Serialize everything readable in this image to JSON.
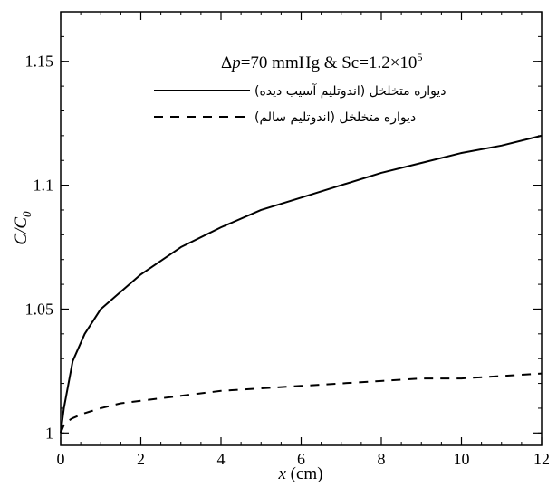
{
  "chart_data": {
    "type": "line",
    "annotation_parts": {
      "delta": "Δ",
      "p": "p",
      "rest": "=70 mmHg & Sc=1.2×10",
      "exp": "5"
    },
    "xlabel_parts": {
      "italic": "x",
      "rest": " (cm)"
    },
    "ylabel_parts": {
      "main": "C/C",
      "sub": "0"
    },
    "xlim": [
      0,
      12
    ],
    "ylim": [
      0.995,
      1.17
    ],
    "x_ticks": [
      0,
      2,
      4,
      6,
      8,
      10,
      12
    ],
    "x_tick_labels": [
      "0",
      "2",
      "4",
      "6",
      "8",
      "10",
      "12"
    ],
    "x_minor_step": 0.5,
    "y_ticks": [
      1.0,
      1.05,
      1.1,
      1.15
    ],
    "y_tick_labels": [
      "1",
      "1.05",
      "1.1",
      "1.15"
    ],
    "y_minor_step": 0.01,
    "grid": false,
    "legend_position": "top-right",
    "series": [
      {
        "name": "دیواره متخلخل (اندوتلیم آسیب دیده)",
        "style": "solid",
        "x": [
          0,
          0.08,
          0.3,
          0.6,
          1.0,
          1.5,
          2,
          3,
          4,
          5,
          6,
          7,
          8,
          9,
          10,
          11,
          12
        ],
        "y": [
          1.0,
          1.01,
          1.029,
          1.04,
          1.05,
          1.057,
          1.064,
          1.075,
          1.083,
          1.09,
          1.095,
          1.1,
          1.105,
          1.109,
          1.113,
          1.116,
          1.12
        ]
      },
      {
        "name": "دیواره متخلخل (اندوتلیم سالم)",
        "style": "dashed",
        "x": [
          0,
          0.1,
          0.3,
          0.6,
          1.0,
          1.5,
          2,
          3,
          4,
          5,
          6,
          7,
          8,
          9,
          10,
          11,
          12
        ],
        "y": [
          1.0,
          1.004,
          1.006,
          1.008,
          1.01,
          1.012,
          1.013,
          1.015,
          1.017,
          1.018,
          1.019,
          1.02,
          1.021,
          1.022,
          1.022,
          1.023,
          1.024
        ]
      }
    ]
  }
}
